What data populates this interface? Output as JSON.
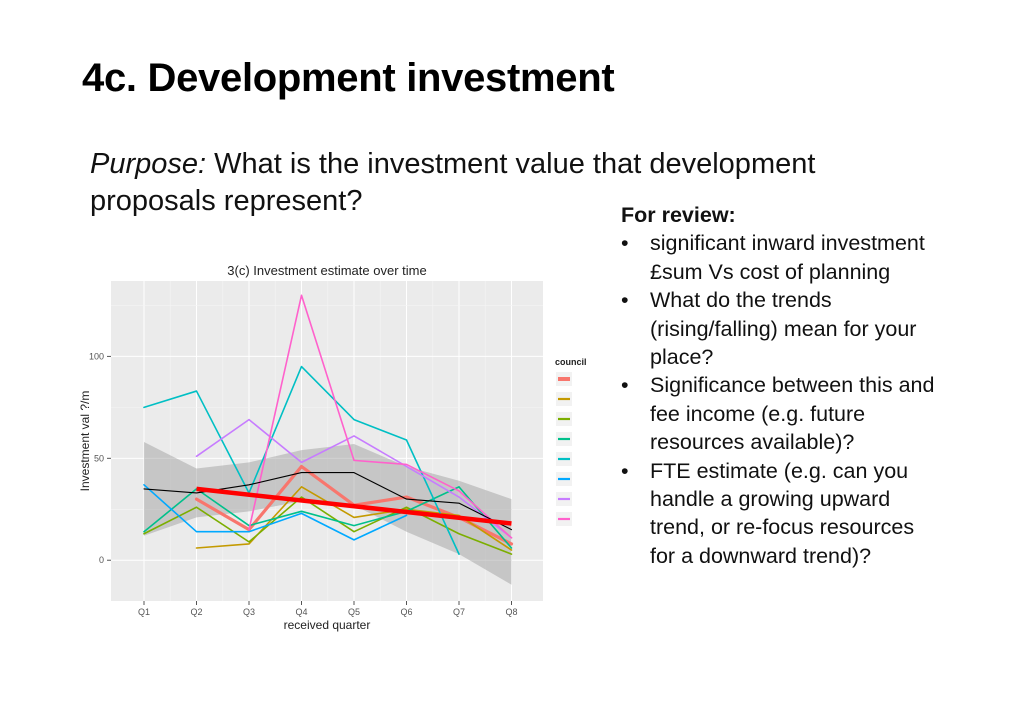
{
  "slide": {
    "title": "4c. Development investment",
    "purpose_label": "Purpose:",
    "purpose_text": "What is the investment value that development proposals represent?"
  },
  "review": {
    "heading": "For review:",
    "items": [
      "significant inward investment £sum Vs cost of planning",
      "What do the trends (rising/falling) mean for your place?",
      "Significance between this and fee income (e.g. future resources available)?",
      "FTE estimate (e.g. can you handle a growing upward trend, or re-focus resources for a downward trend)?"
    ]
  },
  "chart_data": {
    "type": "line",
    "title": "3(c) Investment estimate over time",
    "xlabel": "received quarter",
    "ylabel": "Investment val ?/m",
    "categories": [
      "Q1",
      "Q2",
      "Q3",
      "Q4",
      "Q5",
      "Q6",
      "Q7",
      "Q8"
    ],
    "yticks": [
      0,
      50,
      100
    ],
    "ylim": [
      -20,
      137
    ],
    "grid": true,
    "legend_title": "council",
    "legend_position": "right",
    "series": [
      {
        "color": "#F8766D",
        "values": [
          null,
          30,
          15,
          46,
          27,
          31,
          21,
          8
        ]
      },
      {
        "color": "#C49A00",
        "values": [
          null,
          6,
          8,
          36,
          21,
          25,
          22,
          5
        ]
      },
      {
        "color": "#7CAE00",
        "values": [
          13,
          26,
          9,
          31,
          14,
          26,
          13,
          3
        ]
      },
      {
        "color": "#00C08B",
        "values": [
          14,
          35,
          17,
          24,
          17,
          24,
          36,
          6
        ]
      },
      {
        "color": "#00BFC4",
        "values": [
          75,
          83,
          33,
          95,
          69,
          59,
          3,
          null
        ]
      },
      {
        "color": "#00A9FF",
        "values": [
          37,
          14,
          14,
          23,
          10,
          22,
          null,
          null
        ]
      },
      {
        "color": "#C77CFF",
        "values": [
          null,
          51,
          69,
          48,
          61,
          46,
          31,
          11
        ]
      },
      {
        "color": "#FF61CC",
        "values": [
          null,
          null,
          15,
          130,
          49,
          47,
          34,
          11
        ]
      }
    ],
    "mean_line": {
      "color": "#000000",
      "values": [
        35,
        33,
        37,
        43,
        43,
        30,
        28,
        15
      ]
    },
    "confidence_band": {
      "color": "#999999",
      "upper": [
        58,
        45,
        48,
        54,
        57,
        46,
        39,
        30
      ],
      "lower": [
        12,
        21,
        24,
        29,
        27,
        14,
        3,
        -12
      ]
    },
    "trend_line": {
      "color": "#FF0000",
      "x": [
        "Q2",
        "Q8"
      ],
      "values": [
        35,
        18
      ]
    }
  }
}
